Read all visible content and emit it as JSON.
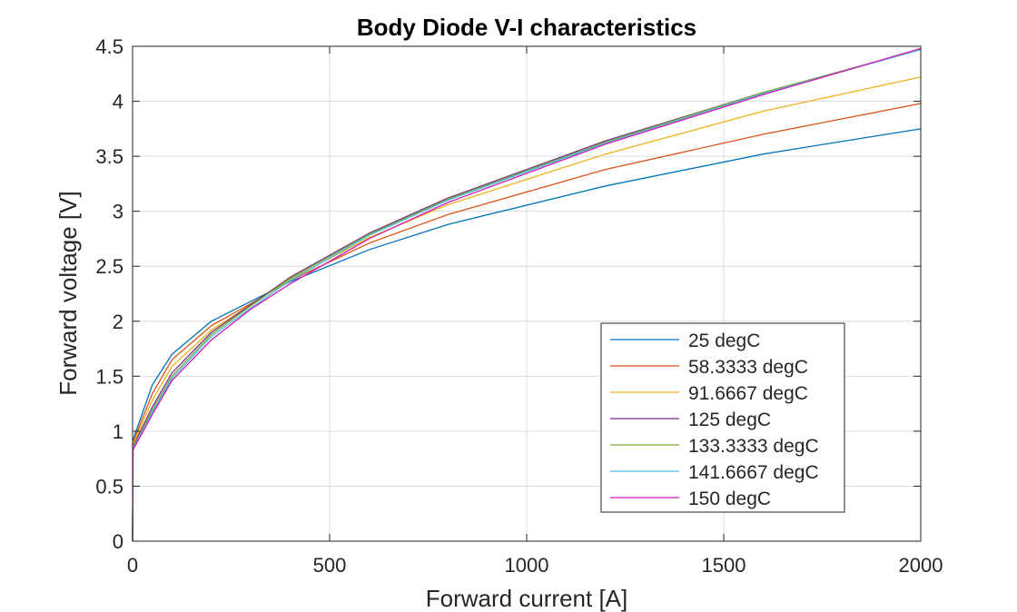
{
  "chart_data": {
    "type": "line",
    "title": "Body Diode V-I characteristics",
    "xlabel": "Forward current [A]",
    "ylabel": "Forward voltage [V]",
    "xlim": [
      0,
      2000
    ],
    "ylim": [
      0,
      4.5
    ],
    "xticks": [
      0,
      500,
      1000,
      1500,
      2000
    ],
    "xtick_labels": [
      "0",
      "500",
      "1000",
      "1500",
      "2000"
    ],
    "yticks": [
      0,
      0.5,
      1,
      1.5,
      2,
      2.5,
      3,
      3.5,
      4,
      4.5
    ],
    "ytick_labels": [
      "0",
      "0.5",
      "1",
      "1.5",
      "2",
      "2.5",
      "3",
      "3.5",
      "4",
      "4.5"
    ],
    "grid": true,
    "legend_position": "lower-right",
    "x": [
      0,
      1,
      50,
      100,
      200,
      300,
      400,
      600,
      800,
      1200,
      1600,
      2000
    ],
    "series": [
      {
        "name": "25 degC",
        "color": "#0072BD",
        "values": [
          0,
          0.92,
          1.42,
          1.7,
          2.0,
          2.18,
          2.36,
          2.65,
          2.88,
          3.23,
          3.52,
          3.75
        ]
      },
      {
        "name": "58.3333 degC",
        "color": "#D95319",
        "values": [
          0,
          0.9,
          1.34,
          1.65,
          1.96,
          2.16,
          2.37,
          2.71,
          2.97,
          3.38,
          3.7,
          3.98
        ]
      },
      {
        "name": "91.6667 degC",
        "color": "#EDB120",
        "values": [
          0,
          0.88,
          1.28,
          1.59,
          1.92,
          2.15,
          2.38,
          2.76,
          3.06,
          3.52,
          3.91,
          4.22
        ]
      },
      {
        "name": "125 degC",
        "color": "#7E2F8E",
        "values": [
          0,
          0.86,
          1.22,
          1.53,
          1.9,
          2.15,
          2.4,
          2.8,
          3.12,
          3.64,
          4.08,
          4.47
        ]
      },
      {
        "name": "133.3333 degC",
        "color": "#77AC30",
        "values": [
          0,
          0.85,
          1.19,
          1.5,
          1.88,
          2.14,
          2.39,
          2.79,
          3.11,
          3.63,
          4.08,
          4.47
        ]
      },
      {
        "name": "141.6667 degC",
        "color": "#4DBEEE",
        "values": [
          0,
          0.84,
          1.17,
          1.48,
          1.86,
          2.12,
          2.37,
          2.78,
          3.1,
          3.62,
          4.07,
          4.47
        ]
      },
      {
        "name": "150 degC",
        "color": "#D41BB2",
        "values": [
          0,
          0.83,
          1.15,
          1.46,
          1.83,
          2.11,
          2.34,
          2.75,
          3.08,
          3.61,
          4.06,
          4.48
        ]
      }
    ]
  }
}
